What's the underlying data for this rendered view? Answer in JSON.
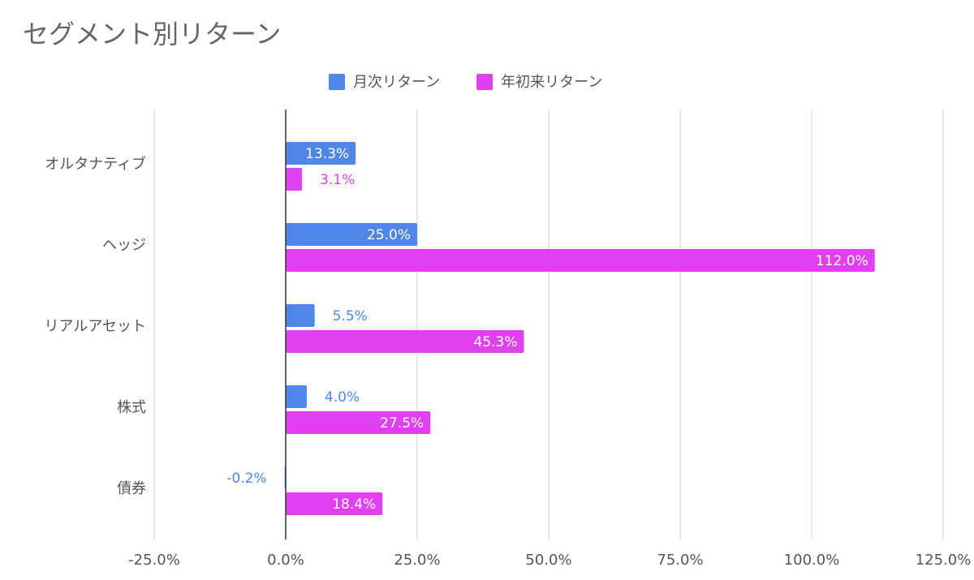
{
  "chart_data": {
    "type": "hbar",
    "title": "セグメント別リターン",
    "categories": [
      "オルタナティブ",
      "ヘッジ",
      "リアルアセット",
      "株式",
      "債券"
    ],
    "series": [
      {
        "name": "月次リターン",
        "color": "#4f86e8",
        "values": [
          13.3,
          25.0,
          5.5,
          4.0,
          -0.2
        ],
        "value_labels": [
          "13.3%",
          "25.0%",
          "5.5%",
          "4.0%",
          "-0.2%"
        ]
      },
      {
        "name": "年初来リターン",
        "color": "#e040f0",
        "values": [
          3.1,
          112.0,
          45.3,
          27.5,
          18.4
        ],
        "value_labels": [
          "3.1%",
          "112.0%",
          "45.3%",
          "27.5%",
          "18.4%"
        ]
      }
    ],
    "xlim": [
      -25,
      125
    ],
    "xticks": [
      {
        "value": -25,
        "label": "-25.0%"
      },
      {
        "value": 0,
        "label": "0.0%"
      },
      {
        "value": 25,
        "label": "25.0%"
      },
      {
        "value": 50,
        "label": "50.0%"
      },
      {
        "value": 75,
        "label": "75.0%"
      },
      {
        "value": 100,
        "label": "100.0%"
      },
      {
        "value": 125,
        "label": "125.0%"
      }
    ],
    "grid": true,
    "legend": "top"
  }
}
